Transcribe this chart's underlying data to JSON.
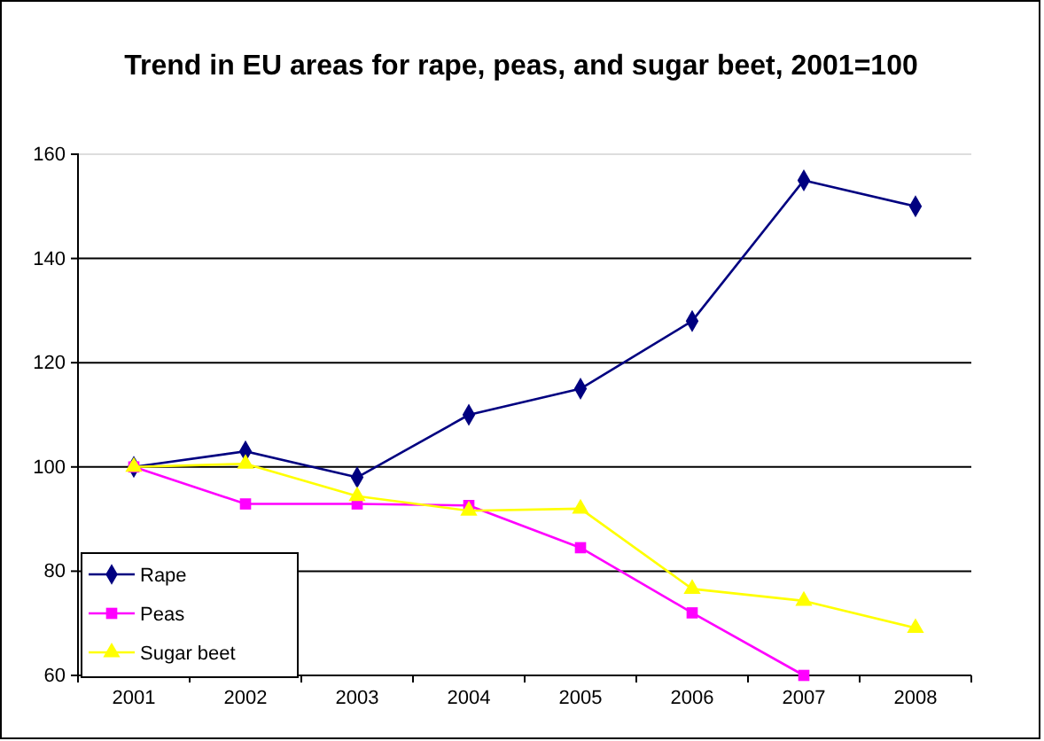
{
  "chart_data": {
    "type": "line",
    "title": "Trend in EU areas for rape, peas, and sugar beet, 2001=100",
    "categories": [
      "2001",
      "2002",
      "2003",
      "2004",
      "2005",
      "2006",
      "2007",
      "2008"
    ],
    "series": [
      {
        "name": "Rape",
        "color": "#000080",
        "marker": "diamond",
        "values": [
          100,
          103,
          98,
          110,
          115,
          128,
          155,
          150
        ]
      },
      {
        "name": "Peas",
        "color": "#ff00ff",
        "marker": "square",
        "values": [
          100,
          92.9,
          92.9,
          92.6,
          84.5,
          72,
          60,
          null
        ]
      },
      {
        "name": "Sugar beet",
        "color": "#ffff00",
        "marker": "triangle",
        "values": [
          100,
          100.6,
          94.4,
          91.6,
          92,
          76.6,
          74.3,
          69.1
        ]
      }
    ],
    "ylim": [
      60,
      160
    ],
    "yticks": [
      60,
      80,
      100,
      120,
      140,
      160
    ],
    "grid": "y",
    "legend": "bottom left"
  }
}
